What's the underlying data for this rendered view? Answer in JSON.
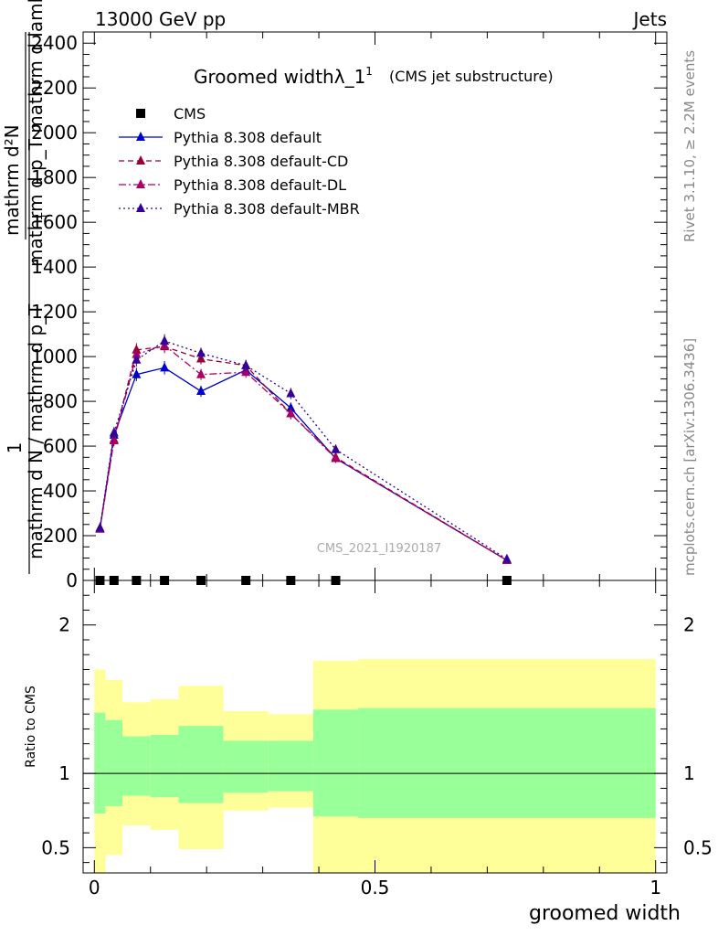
{
  "header": {
    "left": "13000 GeV pp",
    "right": "Jets"
  },
  "side": {
    "rivet": "Rivet 3.1.10, ≥ 2.2M events",
    "mcplots": "mcplots.cern.ch [arXiv:1306.3436]"
  },
  "chart_data": {
    "type": "line",
    "title_main": "Groomed width",
    "title_lambda": "λ_1",
    "title_sup": "1",
    "title_sub": "(CMS jet substructure)",
    "ylabel_fraction_top": "mathrm d²N",
    "ylabel_fraction_bottom": "mathrm d p_T mathrm d lambda",
    "ylabel_left_top": "1",
    "ylabel_left_bottom": "mathrm d N / mathrm d p_T",
    "ylabel_T": "T",
    "watermark": "CMS_2021_I1920187",
    "xlabel": "groomed width",
    "ratio_ylabel": "Ratio to CMS",
    "xlim": [
      -0.02,
      1.02
    ],
    "ylim": [
      0,
      2450
    ],
    "ratio_ylim": [
      0.33,
      2.3
    ],
    "x_ticks": [
      {
        "v": 0,
        "label": "0"
      },
      {
        "v": 0.5,
        "label": "0.5"
      },
      {
        "v": 1,
        "label": "1"
      }
    ],
    "y_ticks": [
      {
        "v": 0,
        "label": "0"
      },
      {
        "v": 200,
        "label": "200"
      },
      {
        "v": 400,
        "label": "400"
      },
      {
        "v": 600,
        "label": "600"
      },
      {
        "v": 800,
        "label": "800"
      },
      {
        "v": 1000,
        "label": "1000"
      },
      {
        "v": 1200,
        "label": "1200"
      },
      {
        "v": 1400,
        "label": "1400"
      },
      {
        "v": 1600,
        "label": "1600"
      },
      {
        "v": 1800,
        "label": "1800"
      },
      {
        "v": 2000,
        "label": "2000"
      },
      {
        "v": 2200,
        "label": "2200"
      },
      {
        "v": 2400,
        "label": "2400"
      }
    ],
    "ratio_ticks": [
      {
        "v": 0.5,
        "label": "0.5"
      },
      {
        "v": 1,
        "label": "1"
      },
      {
        "v": 2,
        "label": "2"
      }
    ],
    "data_series": {
      "name": "CMS",
      "x": [
        0.01,
        0.035,
        0.075,
        0.125,
        0.19,
        0.27,
        0.35,
        0.43,
        0.735
      ],
      "y": [
        0,
        0,
        0,
        0,
        0,
        0,
        0,
        0,
        0
      ]
    },
    "series": [
      {
        "name": "Pythia 8.308 default",
        "color": "#0000cc",
        "dash": "",
        "x": [
          0.01,
          0.035,
          0.075,
          0.125,
          0.19,
          0.27,
          0.35,
          0.43,
          0.735
        ],
        "y": [
          230,
          650,
          920,
          950,
          845,
          940,
          770,
          545,
          90
        ],
        "err": [
          15,
          25,
          30,
          30,
          25,
          25,
          25,
          20,
          8
        ]
      },
      {
        "name": "Pythia 8.308 default-CD",
        "color": "#990033",
        "dash": "6,4",
        "x": [
          0.01,
          0.035,
          0.075,
          0.125,
          0.19,
          0.27,
          0.35,
          0.43,
          0.735
        ],
        "y": [
          230,
          630,
          1030,
          1045,
          990,
          960,
          745,
          550,
          90
        ],
        "err": [
          15,
          25,
          30,
          30,
          25,
          25,
          25,
          20,
          8
        ]
      },
      {
        "name": "Pythia 8.308 default-DL",
        "color": "#aa0066",
        "dash": "8,3,2,3",
        "x": [
          0.01,
          0.035,
          0.075,
          0.125,
          0.19,
          0.27,
          0.35,
          0.43,
          0.735
        ],
        "y": [
          230,
          625,
          1010,
          1050,
          920,
          930,
          745,
          545,
          90
        ],
        "err": [
          15,
          25,
          30,
          30,
          25,
          25,
          25,
          20,
          8
        ]
      },
      {
        "name": "Pythia 8.308 default-MBR",
        "color": "#330099",
        "dash": "2,3",
        "x": [
          0.01,
          0.035,
          0.075,
          0.125,
          0.19,
          0.27,
          0.35,
          0.43,
          0.735
        ],
        "y": [
          235,
          660,
          985,
          1070,
          1015,
          960,
          835,
          585,
          95
        ],
        "err": [
          15,
          25,
          30,
          30,
          25,
          25,
          25,
          20,
          8
        ]
      }
    ],
    "ratio_bins": [
      {
        "x0": 0.0,
        "x1": 0.02,
        "g_lo": 0.73,
        "g_hi": 1.41,
        "y_lo": 0.33,
        "y_hi": 1.7
      },
      {
        "x0": 0.02,
        "x1": 0.05,
        "g_lo": 0.78,
        "g_hi": 1.36,
        "y_lo": 0.45,
        "y_hi": 1.63
      },
      {
        "x0": 0.05,
        "x1": 0.1,
        "g_lo": 0.85,
        "g_hi": 1.25,
        "y_lo": 0.65,
        "y_hi": 1.48
      },
      {
        "x0": 0.1,
        "x1": 0.15,
        "g_lo": 0.84,
        "g_hi": 1.26,
        "y_lo": 0.62,
        "y_hi": 1.5
      },
      {
        "x0": 0.15,
        "x1": 0.23,
        "g_lo": 0.8,
        "g_hi": 1.32,
        "y_lo": 0.49,
        "y_hi": 1.59
      },
      {
        "x0": 0.23,
        "x1": 0.31,
        "g_lo": 0.87,
        "g_hi": 1.22,
        "y_lo": 0.75,
        "y_hi": 1.42
      },
      {
        "x0": 0.31,
        "x1": 0.39,
        "g_lo": 0.88,
        "g_hi": 1.22,
        "y_lo": 0.77,
        "y_hi": 1.4
      },
      {
        "x0": 0.39,
        "x1": 0.47,
        "g_lo": 0.71,
        "g_hi": 1.43,
        "y_lo": 0.33,
        "y_hi": 1.76
      },
      {
        "x0": 0.47,
        "x1": 1.0,
        "g_lo": 0.7,
        "g_hi": 1.44,
        "y_lo": 0.33,
        "y_hi": 1.77
      }
    ],
    "band_colors": {
      "green": "#99ff99",
      "yellow": "#ffff99"
    }
  }
}
